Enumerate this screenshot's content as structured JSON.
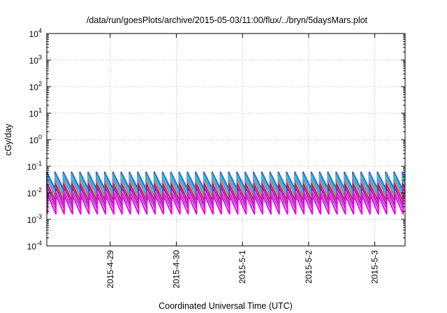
{
  "chart_data": {
    "type": "line",
    "title": "/data/run/goesPlots/archive/2015-05-03/11:00/flux/../bryn/5daysMars.plot",
    "xlabel": "Coordinated Universal Time (UTC)",
    "ylabel": "cGy/day",
    "x_range": [
      "2015-04-28T01:00",
      "2015-05-03T11:00"
    ],
    "x_ticks": [
      "2015-4-29",
      "2015-4-30",
      "2015-5-1",
      "2015-5-2",
      "2015-5-3"
    ],
    "y_scale": "log",
    "ylim": [
      0.0001,
      10000
    ],
    "y_tick_exponents": [
      "-4",
      "-3",
      "-2",
      "-1",
      "0",
      "1",
      "2",
      "3",
      "4"
    ],
    "grid": true,
    "legend": "none",
    "cycle_hours": 3,
    "series": [
      {
        "peak": 0.06,
        "base": 0.014,
        "color": "#2c56c8"
      },
      {
        "peak": 0.05,
        "base": 0.011,
        "color": "#3fa0d4"
      },
      {
        "peak": 0.04,
        "base": 0.009,
        "color": "#30c8c8"
      },
      {
        "peak": 0.032,
        "base": 0.007,
        "color": "#8888cc"
      },
      {
        "peak": 0.022,
        "base": 0.005,
        "color": "#d0202a"
      },
      {
        "peak": 0.016,
        "base": 0.0035,
        "color": "#9020c0"
      },
      {
        "peak": 0.011,
        "base": 0.0025,
        "color": "#c830d8"
      },
      {
        "peak": 0.008,
        "base": 0.0016,
        "color": "#ee00e0"
      }
    ]
  }
}
